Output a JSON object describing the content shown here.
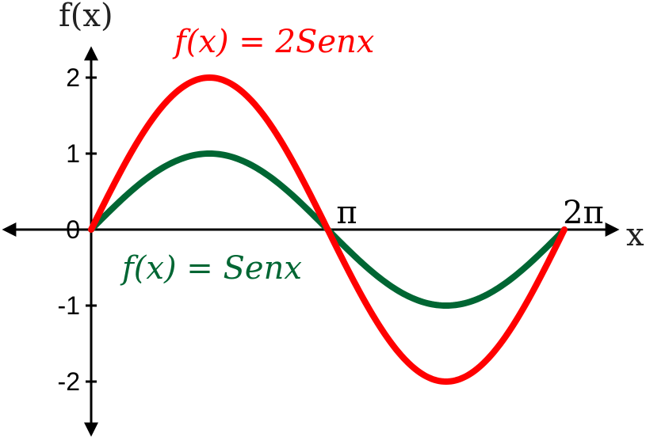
{
  "chart_data": {
    "type": "line",
    "ylabel": "f(x)",
    "xlabel": "x",
    "xlim": [
      0,
      6.2832
    ],
    "ylim": [
      -2,
      2
    ],
    "y_ticks": [
      {
        "value": 2,
        "label": "2"
      },
      {
        "value": 1,
        "label": "1"
      },
      {
        "value": 0,
        "label": "0"
      },
      {
        "value": -1,
        "label": "-1"
      },
      {
        "value": -2,
        "label": "-2"
      }
    ],
    "x_ticks": [
      {
        "value": 3.14159,
        "label": "π"
      },
      {
        "value": 6.28318,
        "label": "2π"
      }
    ],
    "grid": false,
    "series": [
      {
        "name": "f(x) = 2Senx",
        "amplitude": 2,
        "color": "#ff0000"
      },
      {
        "name": "f(x) = Senx",
        "amplitude": 1,
        "color": "#006633"
      }
    ]
  }
}
